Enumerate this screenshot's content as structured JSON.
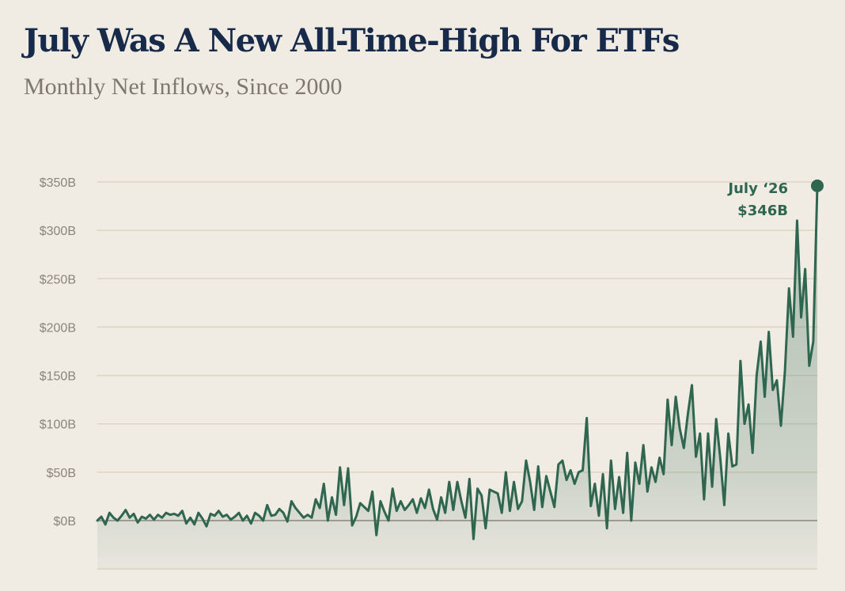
{
  "header": {
    "title": "July Was A New All-Time-High For ETFs",
    "subtitle": "Monthly Net Inflows, Since 2000"
  },
  "colors": {
    "background": "#f0ebe3",
    "line": "#2f6650",
    "grid": "#ddd5c4",
    "title": "#172a4a"
  },
  "chart_data": {
    "type": "area",
    "title": "July Was A New All-Time-High For ETFs",
    "subtitle": "Monthly Net Inflows, Since 2000",
    "xlabel": "",
    "ylabel": "",
    "ylim": [
      -50,
      350
    ],
    "yticks": [
      0,
      50,
      100,
      150,
      200,
      250,
      300,
      350
    ],
    "ytick_labels": [
      "$0B",
      "$50B",
      "$100B",
      "$150B",
      "$200B",
      "$250B",
      "$300B",
      "$350B"
    ],
    "grid": true,
    "legend": "none",
    "annotation": {
      "line1": "July ‘26",
      "line2": "$346B",
      "value": 346
    },
    "series": [
      {
        "values": [
          0,
          4,
          -4,
          8,
          3,
          0,
          5,
          11,
          3,
          7,
          -2,
          4,
          2,
          6,
          1,
          6,
          3,
          8,
          6,
          7,
          5,
          10,
          -3,
          3,
          -4,
          8,
          2,
          -6,
          7,
          5,
          10,
          4,
          6,
          1,
          4,
          8,
          0,
          5,
          -3,
          8,
          5,
          0,
          16,
          5,
          6,
          12,
          8,
          -1,
          20,
          13,
          8,
          3,
          6,
          3,
          22,
          13,
          38,
          0,
          24,
          6,
          55,
          16,
          54,
          -5,
          4,
          18,
          14,
          10,
          30,
          -15,
          20,
          9,
          0,
          33,
          10,
          20,
          11,
          16,
          22,
          8,
          23,
          13,
          32,
          12,
          1,
          24,
          8,
          40,
          11,
          40,
          20,
          3,
          43,
          -19,
          33,
          26,
          -8,
          32,
          30,
          28,
          8,
          50,
          10,
          40,
          12,
          20,
          62,
          40,
          11,
          56,
          14,
          46,
          30,
          14,
          58,
          62,
          42,
          52,
          38,
          50,
          52,
          106,
          15,
          38,
          5,
          48,
          -8,
          62,
          12,
          45,
          8,
          70,
          0,
          60,
          38,
          78,
          30,
          55,
          40,
          65,
          48,
          125,
          78,
          128,
          95,
          75,
          110,
          140,
          66,
          90,
          22,
          90,
          35,
          105,
          65,
          16,
          90,
          56,
          58,
          165,
          100,
          120,
          70,
          150,
          185,
          128,
          195,
          135,
          145,
          98,
          155,
          240,
          190,
          310,
          210,
          260,
          160,
          185,
          346
        ]
      }
    ]
  }
}
